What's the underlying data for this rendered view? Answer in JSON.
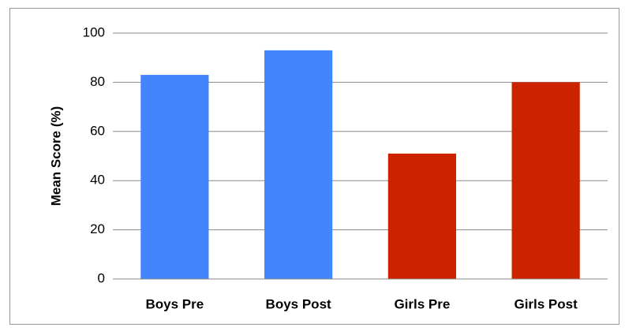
{
  "chart_data": {
    "type": "bar",
    "y_axis_label": "Mean Score (%)",
    "categories": [
      "Boys Pre",
      "Boys Post",
      "Girls Pre",
      "Girls Post"
    ],
    "values": [
      83,
      93,
      51,
      80
    ],
    "colors": [
      "#4285fd",
      "#4285fd",
      "#cc2200",
      "#cc2200"
    ],
    "ylim": [
      0,
      100
    ],
    "yticks": [
      0,
      20,
      40,
      60,
      80,
      100
    ],
    "grid": true
  }
}
